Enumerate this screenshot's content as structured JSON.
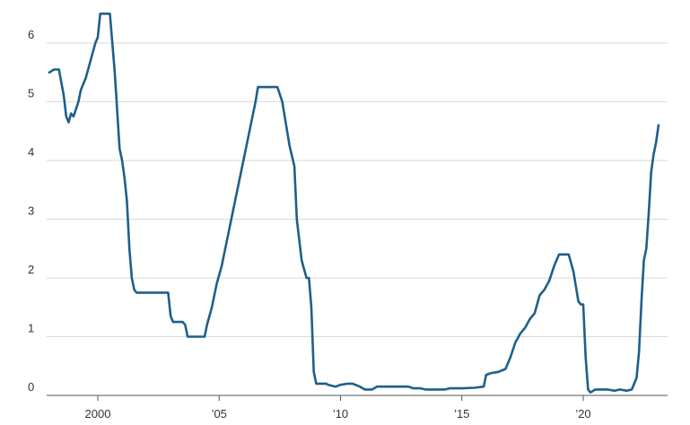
{
  "chart_data": {
    "type": "line",
    "title": "",
    "xlabel": "",
    "ylabel": "",
    "xlim": [
      1997.4,
      2023.6
    ],
    "ylim": [
      0,
      6.6
    ],
    "grid": true,
    "y_ticks": [
      0,
      1,
      2,
      3,
      4,
      5,
      6
    ],
    "y_tick_labels": [
      "0",
      "1",
      "2",
      "3",
      "4",
      "5",
      "6"
    ],
    "x_ticks": [
      2000,
      2005,
      2010,
      2015,
      2020
    ],
    "x_tick_labels": [
      "2000",
      "’05",
      "’10",
      "’15",
      "’20"
    ],
    "series": [
      {
        "color": "#1f5f8b",
        "x": [
          1998.0,
          1998.2,
          1998.4,
          1998.6,
          1998.7,
          1998.8,
          1998.9,
          1999.0,
          1999.2,
          1999.3,
          1999.5,
          1999.7,
          1999.8,
          1999.9,
          2000.0,
          2000.1,
          2000.2,
          2000.3,
          2000.4,
          2000.5,
          2000.7,
          2000.9,
          2001.0,
          2001.1,
          2001.2,
          2001.3,
          2001.4,
          2001.5,
          2001.6,
          2001.7,
          2001.8,
          2001.9,
          2002.0,
          2002.5,
          2002.9,
          2003.0,
          2003.1,
          2003.3,
          2003.5,
          2003.6,
          2003.7,
          2004.0,
          2004.3,
          2004.4,
          2004.5,
          2004.7,
          2004.9,
          2005.1,
          2005.3,
          2005.5,
          2005.7,
          2005.9,
          2006.1,
          2006.3,
          2006.5,
          2006.6,
          2007.0,
          2007.4,
          2007.6,
          2007.7,
          2007.9,
          2008.1,
          2008.2,
          2008.4,
          2008.6,
          2008.7,
          2008.8,
          2008.9,
          2009.0,
          2009.2,
          2009.4,
          2009.5,
          2009.8,
          2010.0,
          2010.3,
          2010.5,
          2010.8,
          2011.0,
          2011.3,
          2011.5,
          2011.8,
          2012.0,
          2012.3,
          2012.5,
          2012.8,
          2013.0,
          2013.3,
          2013.5,
          2013.8,
          2014.0,
          2014.3,
          2014.5,
          2014.8,
          2015.0,
          2015.5,
          2015.9,
          2016.0,
          2016.2,
          2016.5,
          2016.8,
          2017.0,
          2017.2,
          2017.4,
          2017.6,
          2017.8,
          2018.0,
          2018.2,
          2018.4,
          2018.6,
          2018.8,
          2019.0,
          2019.2,
          2019.4,
          2019.6,
          2019.7,
          2019.8,
          2019.9,
          2020.0,
          2020.1,
          2020.2,
          2020.3,
          2020.5,
          2020.8,
          2021.0,
          2021.3,
          2021.5,
          2021.8,
          2022.0,
          2022.1,
          2022.2,
          2022.3,
          2022.4,
          2022.5,
          2022.6,
          2022.7,
          2022.8,
          2022.9,
          2023.0,
          2023.1
        ],
        "values": [
          5.5,
          5.55,
          5.55,
          5.1,
          4.75,
          4.65,
          4.8,
          4.75,
          5.0,
          5.2,
          5.4,
          5.7,
          5.85,
          6.0,
          6.1,
          6.5,
          6.5,
          6.5,
          6.5,
          6.5,
          5.5,
          4.2,
          4.0,
          3.7,
          3.3,
          2.5,
          2.0,
          1.8,
          1.75,
          1.75,
          1.75,
          1.75,
          1.75,
          1.75,
          1.75,
          1.35,
          1.25,
          1.25,
          1.25,
          1.2,
          1.0,
          1.0,
          1.0,
          1.0,
          1.2,
          1.5,
          1.9,
          2.2,
          2.6,
          3.0,
          3.4,
          3.8,
          4.2,
          4.6,
          5.0,
          5.25,
          5.25,
          5.25,
          5.0,
          4.75,
          4.25,
          3.9,
          3.0,
          2.3,
          2.0,
          2.0,
          1.5,
          0.4,
          0.2,
          0.2,
          0.2,
          0.18,
          0.15,
          0.18,
          0.2,
          0.2,
          0.15,
          0.1,
          0.1,
          0.15,
          0.15,
          0.15,
          0.15,
          0.15,
          0.15,
          0.12,
          0.12,
          0.1,
          0.1,
          0.1,
          0.1,
          0.12,
          0.12,
          0.12,
          0.13,
          0.15,
          0.35,
          0.38,
          0.4,
          0.45,
          0.65,
          0.9,
          1.05,
          1.15,
          1.3,
          1.4,
          1.7,
          1.8,
          1.95,
          2.2,
          2.4,
          2.4,
          2.4,
          2.1,
          1.85,
          1.6,
          1.55,
          1.55,
          0.65,
          0.1,
          0.05,
          0.1,
          0.1,
          0.1,
          0.08,
          0.1,
          0.08,
          0.1,
          0.2,
          0.3,
          0.75,
          1.6,
          2.3,
          2.5,
          3.1,
          3.8,
          4.1,
          4.3,
          4.6
        ]
      }
    ]
  }
}
